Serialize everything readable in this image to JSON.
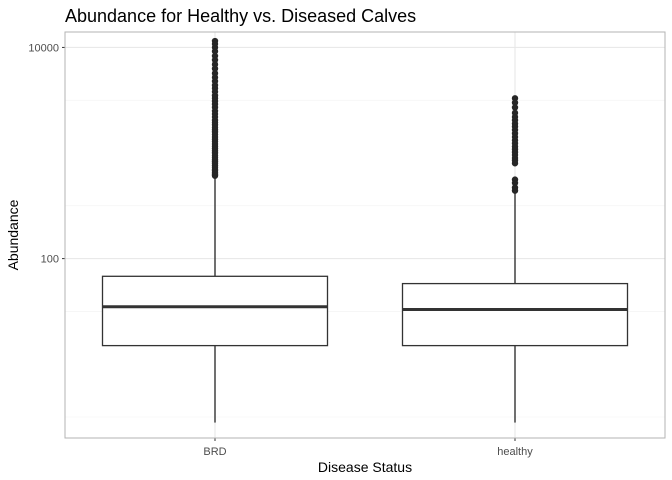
{
  "chart_data": {
    "type": "boxplot",
    "title": "Abundance for Healthy vs. Diseased Calves",
    "xlabel": "Disease Status",
    "ylabel": "Abundance",
    "y_scale": "log10",
    "ylim": [
      2.0,
      14000
    ],
    "y_ticks": [
      100,
      10000
    ],
    "y_tick_labels": [
      "100",
      "10000"
    ],
    "grid": true,
    "categories": [
      "BRD",
      "healthy"
    ],
    "boxes": [
      {
        "category": "BRD",
        "whisker_low": 2.8,
        "q1": 15,
        "median": 35,
        "q3": 68,
        "whisker_high": 590,
        "outliers": [
          610,
          630,
          650,
          680,
          700,
          730,
          760,
          800,
          830,
          870,
          910,
          950,
          1000,
          1050,
          1100,
          1160,
          1220,
          1290,
          1350,
          1420,
          1500,
          1580,
          1660,
          1750,
          1850,
          1950,
          2050,
          2200,
          2350,
          2500,
          2700,
          2900,
          3100,
          3300,
          3500,
          3800,
          4100,
          4400,
          4800,
          5200,
          5700,
          6300,
          6900,
          7600,
          8300,
          9200,
          10000,
          10800,
          11500
        ]
      },
      {
        "category": "healthy",
        "whisker_low": 2.8,
        "q1": 15,
        "median": 33,
        "q3": 58,
        "whisker_high": 420,
        "outliers": [
          440,
          470,
          520,
          560,
          800,
          850,
          900,
          960,
          1020,
          1080,
          1150,
          1230,
          1320,
          1420,
          1530,
          1650,
          1780,
          1900,
          2050,
          2200,
          2400,
          2700,
          3000,
          3300
        ]
      }
    ]
  }
}
